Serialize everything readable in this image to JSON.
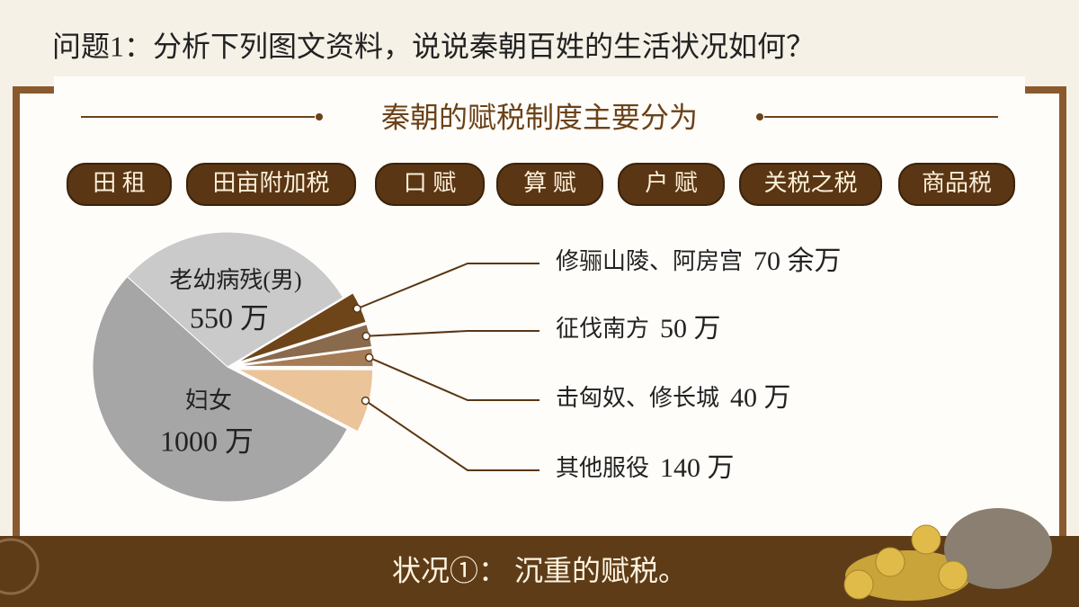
{
  "title": "问题1：分析下列图文资料，说说秦朝百姓的生活状况如何？",
  "subtitle": "秦朝的赋税制度主要分为",
  "taxes": [
    "田 租",
    "田亩附加税",
    "口 赋",
    "算 赋",
    "户 赋",
    "关税之税",
    "商品税"
  ],
  "conclusion": "状况①： 沉重的赋税。",
  "chart_data": {
    "type": "pie",
    "categories": [
      "修骊山陵、阿房宫",
      "征伐南方",
      "击匈奴、修长城",
      "其他服役",
      "妇女",
      "老幼病残(男)"
    ],
    "values": [
      70,
      50,
      40,
      140,
      1000,
      550
    ],
    "value_labels": [
      "70 余万",
      "50 万",
      "40 万",
      "140 万",
      "1000 万",
      "550 万"
    ],
    "colors": [
      "#6e4519",
      "#8a6a4c",
      "#a67c55",
      "#ecc49a",
      "#a6a6a6",
      "#cacaca"
    ]
  }
}
